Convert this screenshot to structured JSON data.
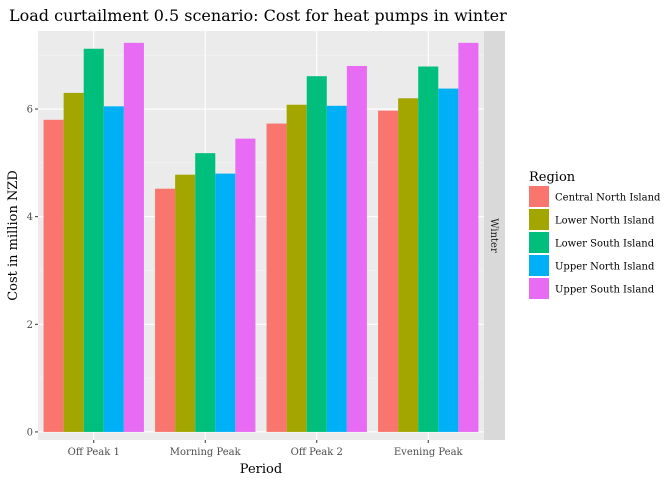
{
  "chart_data": {
    "type": "bar",
    "title": "Load curtailment 0.5 scenario: Cost for heat pumps in winter",
    "xlabel": "Period",
    "ylabel": "Cost in million NZD",
    "facet_label": "Winter",
    "categories": [
      "Off Peak 1",
      "Morning Peak",
      "Off Peak 2",
      "Evening Peak"
    ],
    "ylim": [
      -0.15,
      7.45
    ],
    "yticks": [
      0,
      2,
      4,
      6
    ],
    "grid": true,
    "legend_position": "right",
    "legend_title": "Region",
    "series": [
      {
        "name": "Central North Island",
        "color": "#F8766D",
        "values": [
          5.8,
          4.52,
          5.73,
          5.97
        ]
      },
      {
        "name": "Lower North Island",
        "color": "#A3A500",
        "values": [
          6.3,
          4.78,
          6.08,
          6.2
        ]
      },
      {
        "name": "Lower South Island",
        "color": "#00BF7D",
        "values": [
          7.12,
          5.18,
          6.61,
          6.79
        ]
      },
      {
        "name": "Upper North Island",
        "color": "#00B0F6",
        "values": [
          6.05,
          4.8,
          6.06,
          6.38
        ]
      },
      {
        "name": "Upper South Island",
        "color": "#E76BF3",
        "values": [
          7.23,
          5.45,
          6.8,
          7.23
        ]
      }
    ]
  }
}
